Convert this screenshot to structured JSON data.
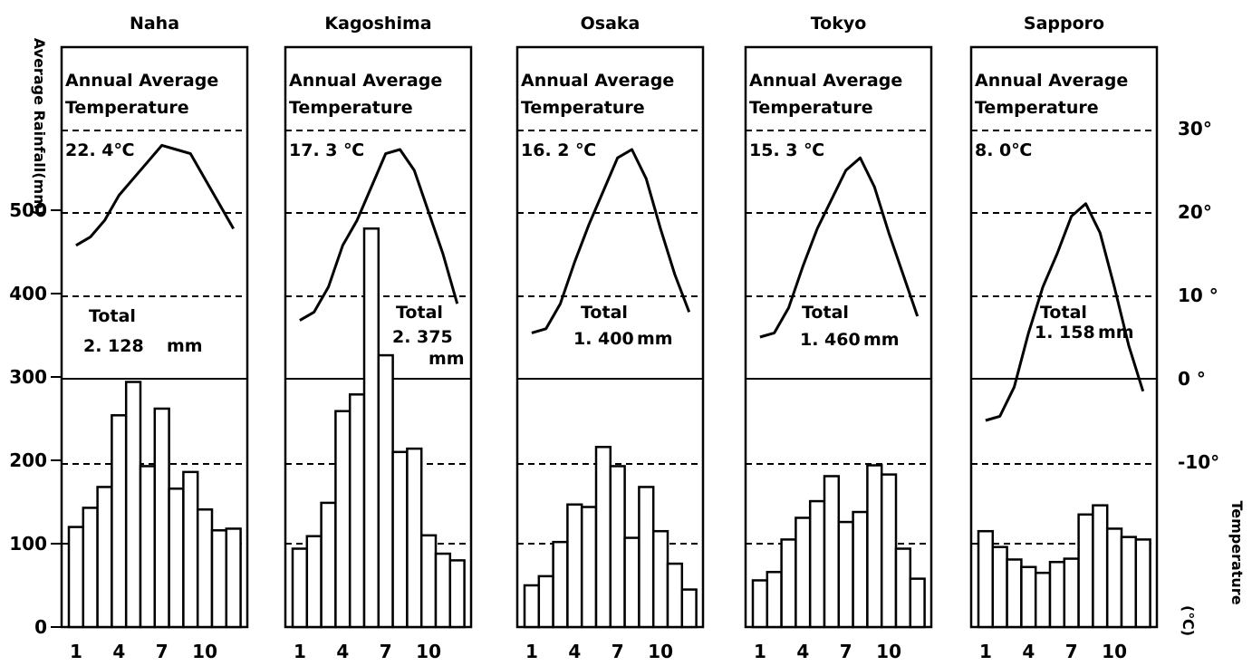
{
  "chart_data": {
    "type": "bar",
    "rainfall_axis": {
      "label": "Average Rainfall(mm)",
      "ticks": [
        "0",
        "100",
        "200",
        "300",
        "400",
        "500"
      ],
      "range": [
        0,
        650
      ]
    },
    "temperature_axis": {
      "label": "Temperature",
      "unit": "(℃)",
      "ticks": [
        "-10°",
        "0 °",
        "10 °",
        "20°",
        "30°"
      ],
      "range": [
        -10,
        30
      ]
    },
    "month_ticks": [
      "1",
      "4",
      "7",
      "10"
    ],
    "annual_temp_label": "Annual Average Temperature",
    "total_label": "Total",
    "cities": [
      {
        "name": "Naha",
        "annual_temp": "22. 4℃",
        "total_value": "2. 128",
        "total_unit": "mm",
        "rainfall": [
          120,
          143,
          168,
          254,
          294,
          193,
          262,
          166,
          186,
          141,
          116,
          118
        ],
        "temperature": [
          16,
          17,
          19,
          22,
          24,
          26,
          28,
          27.5,
          27,
          24,
          21,
          18
        ]
      },
      {
        "name": "Kagoshima",
        "annual_temp": "17. 3 ℃",
        "total_value": "2. 375",
        "total_unit": "mm",
        "rainfall": [
          94,
          109,
          149,
          259,
          279,
          478,
          326,
          210,
          214,
          110,
          88,
          80
        ],
        "temperature": [
          7,
          8,
          11,
          16,
          19,
          23,
          27,
          27.5,
          25,
          20,
          15,
          9
        ]
      },
      {
        "name": "Osaka",
        "annual_temp": "16. 2 ℃",
        "total_value": "1. 400",
        "total_unit": "mm",
        "rainfall": [
          50,
          61,
          102,
          147,
          144,
          216,
          193,
          107,
          168,
          115,
          76,
          45
        ],
        "temperature": [
          5.5,
          6,
          9,
          14,
          18.5,
          22.5,
          26.5,
          27.5,
          24,
          18,
          12.5,
          8
        ]
      },
      {
        "name": "Tokyo",
        "annual_temp": "15. 3 ℃",
        "total_value": "1. 460",
        "total_unit": "mm",
        "rainfall": [
          56,
          66,
          105,
          131,
          151,
          181,
          126,
          138,
          194,
          183,
          94,
          58
        ],
        "temperature": [
          5,
          5.5,
          8.5,
          13.5,
          18,
          21.5,
          25,
          26.5,
          23,
          17.5,
          12.5,
          7.5
        ]
      },
      {
        "name": "Sapporo",
        "annual_temp": "8. 0℃",
        "total_value": "1. 158",
        "total_unit": "mm",
        "rainfall": [
          115,
          96,
          81,
          72,
          65,
          78,
          82,
          135,
          146,
          118,
          108,
          105
        ],
        "temperature": [
          -5,
          -4.5,
          -1,
          5.5,
          11,
          15,
          19.5,
          21,
          17.5,
          11,
          4,
          -1.5
        ]
      }
    ]
  }
}
